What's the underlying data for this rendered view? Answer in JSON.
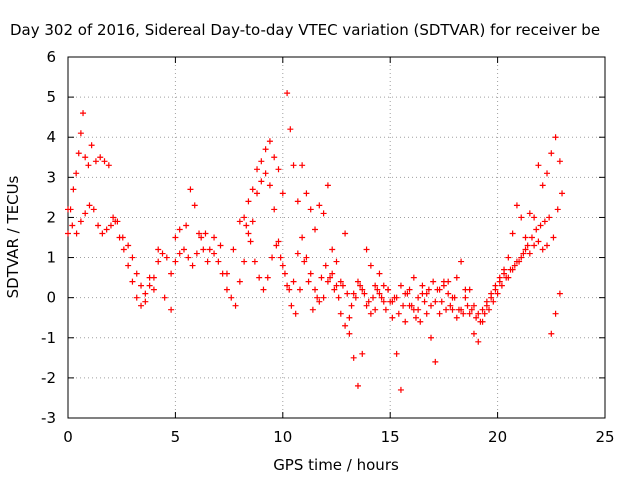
{
  "chart_data": {
    "type": "scatter",
    "title": "Day 302 of 2016, Sidereal Day-to-day VTEC variation (SDTVAR) for receiver be",
    "xlabel": "GPS time / hours",
    "ylabel": "SDTVAR / TECUs",
    "xlim": [
      0,
      25
    ],
    "ylim": [
      -3,
      6
    ],
    "xticks": [
      "0",
      "5",
      "10",
      "15",
      "20",
      "25"
    ],
    "yticks": [
      "-3",
      "-2",
      "-1",
      "0",
      "1",
      "2",
      "3",
      "4",
      "5",
      "6"
    ],
    "grid": true,
    "marker": "+",
    "series_color": "#ff0000",
    "series": [
      {
        "points": [
          [
            0.0,
            1.6
          ],
          [
            0.12,
            2.2
          ],
          [
            0.25,
            2.7
          ],
          [
            0.38,
            3.1
          ],
          [
            0.5,
            3.6
          ],
          [
            0.6,
            4.1
          ],
          [
            0.7,
            4.6
          ],
          [
            0.8,
            3.5
          ],
          [
            0.95,
            3.3
          ],
          [
            1.1,
            3.8
          ],
          [
            1.3,
            3.4
          ],
          [
            1.5,
            3.5
          ],
          [
            1.7,
            3.4
          ],
          [
            1.9,
            3.3
          ],
          [
            2.1,
            2.0
          ],
          [
            2.3,
            1.9
          ],
          [
            2.55,
            1.5
          ],
          [
            2.8,
            1.3
          ],
          [
            3.0,
            1.0
          ],
          [
            3.2,
            0.6
          ],
          [
            3.4,
            0.3
          ],
          [
            3.6,
            -0.1
          ],
          [
            3.8,
            0.5
          ],
          [
            4.0,
            0.2
          ],
          [
            4.2,
            1.2
          ],
          [
            4.5,
            0.0
          ],
          [
            4.8,
            -0.3
          ],
          [
            5.0,
            1.5
          ],
          [
            5.2,
            1.7
          ],
          [
            5.5,
            1.8
          ],
          [
            5.7,
            2.7
          ],
          [
            5.9,
            2.3
          ],
          [
            6.1,
            1.6
          ],
          [
            6.3,
            1.2
          ],
          [
            6.5,
            0.9
          ],
          [
            6.8,
            1.5
          ],
          [
            7.1,
            1.3
          ],
          [
            7.4,
            0.6
          ],
          [
            7.7,
            1.2
          ],
          [
            8.0,
            1.9
          ],
          [
            8.2,
            2.0
          ],
          [
            8.4,
            2.4
          ],
          [
            8.6,
            2.7
          ],
          [
            8.8,
            3.2
          ],
          [
            9.0,
            3.4
          ],
          [
            9.2,
            3.7
          ],
          [
            9.4,
            3.9
          ],
          [
            9.6,
            3.5
          ],
          [
            9.8,
            3.2
          ],
          [
            10.0,
            2.6
          ],
          [
            10.2,
            5.1
          ],
          [
            10.35,
            4.2
          ],
          [
            10.5,
            3.3
          ],
          [
            10.7,
            2.4
          ],
          [
            10.9,
            3.3
          ],
          [
            11.1,
            2.6
          ],
          [
            11.3,
            2.2
          ],
          [
            11.5,
            1.7
          ],
          [
            11.7,
            2.3
          ],
          [
            11.9,
            2.1
          ],
          [
            12.1,
            2.8
          ],
          [
            12.3,
            1.2
          ],
          [
            12.5,
            0.9
          ],
          [
            12.7,
            0.4
          ],
          [
            12.9,
            1.6
          ],
          [
            13.1,
            -0.9
          ],
          [
            13.3,
            -1.5
          ],
          [
            13.5,
            -2.2
          ],
          [
            13.7,
            -1.4
          ],
          [
            13.9,
            1.2
          ],
          [
            14.1,
            0.8
          ],
          [
            14.3,
            0.3
          ],
          [
            14.5,
            0.6
          ],
          [
            14.7,
            -0.1
          ],
          [
            14.9,
            0.2
          ],
          [
            15.1,
            -0.5
          ],
          [
            15.3,
            -1.4
          ],
          [
            15.5,
            -2.3
          ],
          [
            15.7,
            -0.6
          ],
          [
            15.9,
            0.2
          ],
          [
            16.1,
            0.5
          ],
          [
            16.3,
            -0.3
          ],
          [
            16.5,
            0.1
          ],
          [
            16.7,
            -0.4
          ],
          [
            16.9,
            -1.0
          ],
          [
            17.1,
            -1.6
          ],
          [
            17.3,
            -0.4
          ],
          [
            17.5,
            0.3
          ],
          [
            17.7,
            0.4
          ],
          [
            17.9,
            0.0
          ],
          [
            18.1,
            0.5
          ],
          [
            18.3,
            0.9
          ],
          [
            18.5,
            0.2
          ],
          [
            18.7,
            -0.4
          ],
          [
            18.9,
            -0.9
          ],
          [
            19.1,
            -1.1
          ],
          [
            19.3,
            -0.6
          ],
          [
            19.5,
            -0.2
          ],
          [
            19.7,
            0.0
          ],
          [
            19.9,
            0.2
          ],
          [
            20.1,
            0.4
          ],
          [
            20.3,
            0.6
          ],
          [
            20.5,
            1.0
          ],
          [
            20.7,
            1.6
          ],
          [
            20.9,
            2.3
          ],
          [
            21.1,
            2.0
          ],
          [
            21.3,
            1.5
          ],
          [
            21.5,
            2.1
          ],
          [
            21.7,
            2.0
          ],
          [
            21.9,
            3.3
          ],
          [
            22.1,
            2.8
          ],
          [
            22.3,
            3.1
          ],
          [
            22.5,
            3.6
          ],
          [
            22.7,
            4.0
          ],
          [
            22.9,
            3.4
          ]
        ]
      },
      {
        "points": [
          [
            0.0,
            2.2
          ],
          [
            0.2,
            1.8
          ],
          [
            0.4,
            1.6
          ],
          [
            0.6,
            1.9
          ],
          [
            0.8,
            2.1
          ],
          [
            1.0,
            2.3
          ],
          [
            1.2,
            2.2
          ],
          [
            1.4,
            1.8
          ],
          [
            1.6,
            1.6
          ],
          [
            1.8,
            1.7
          ],
          [
            2.0,
            1.8
          ],
          [
            2.2,
            1.9
          ],
          [
            2.4,
            1.5
          ],
          [
            2.6,
            1.2
          ],
          [
            2.8,
            0.8
          ],
          [
            3.0,
            0.4
          ],
          [
            3.2,
            0.0
          ],
          [
            3.4,
            -0.2
          ],
          [
            3.6,
            0.1
          ],
          [
            3.8,
            0.3
          ],
          [
            4.0,
            0.5
          ],
          [
            4.2,
            0.9
          ],
          [
            4.4,
            1.1
          ],
          [
            4.6,
            1.0
          ],
          [
            4.8,
            0.6
          ],
          [
            5.0,
            0.9
          ],
          [
            5.2,
            1.1
          ],
          [
            5.4,
            1.2
          ],
          [
            5.6,
            1.0
          ],
          [
            5.8,
            0.8
          ],
          [
            6.0,
            1.1
          ],
          [
            6.2,
            1.5
          ],
          [
            6.4,
            1.6
          ],
          [
            6.6,
            1.2
          ],
          [
            6.8,
            1.1
          ],
          [
            7.0,
            0.9
          ],
          [
            7.2,
            0.6
          ],
          [
            7.4,
            0.2
          ],
          [
            7.6,
            0.0
          ],
          [
            7.8,
            -0.2
          ],
          [
            8.0,
            0.4
          ],
          [
            8.2,
            0.9
          ],
          [
            8.4,
            1.6
          ],
          [
            8.6,
            1.9
          ],
          [
            8.8,
            2.6
          ],
          [
            9.0,
            2.9
          ],
          [
            9.2,
            3.1
          ],
          [
            9.4,
            2.8
          ],
          [
            9.6,
            2.2
          ],
          [
            9.8,
            1.4
          ],
          [
            10.0,
            0.8
          ],
          [
            10.2,
            0.3
          ],
          [
            10.4,
            -0.2
          ],
          [
            10.6,
            -0.4
          ],
          [
            10.8,
            0.2
          ],
          [
            11.0,
            0.9
          ],
          [
            11.2,
            0.4
          ],
          [
            11.4,
            -0.3
          ],
          [
            11.6,
            0.0
          ],
          [
            11.8,
            0.5
          ],
          [
            12.0,
            0.8
          ],
          [
            12.2,
            0.5
          ],
          [
            12.4,
            0.2
          ],
          [
            12.6,
            0.0
          ],
          [
            12.8,
            0.3
          ],
          [
            13.0,
            0.1
          ],
          [
            13.2,
            -0.2
          ],
          [
            13.4,
            0.0
          ],
          [
            13.6,
            0.3
          ],
          [
            13.8,
            0.1
          ],
          [
            14.0,
            -0.1
          ],
          [
            14.2,
            0.0
          ],
          [
            14.4,
            0.2
          ],
          [
            14.6,
            0.0
          ],
          [
            14.8,
            -0.3
          ],
          [
            15.0,
            -0.1
          ],
          [
            15.2,
            0.0
          ],
          [
            15.4,
            -0.4
          ],
          [
            15.6,
            -0.2
          ],
          [
            15.8,
            0.1
          ],
          [
            16.0,
            -0.2
          ],
          [
            16.2,
            -0.5
          ],
          [
            16.4,
            -0.6
          ],
          [
            16.6,
            -0.1
          ],
          [
            16.8,
            0.2
          ],
          [
            17.0,
            0.4
          ],
          [
            17.2,
            0.2
          ],
          [
            17.4,
            -0.1
          ],
          [
            17.6,
            -0.3
          ],
          [
            17.8,
            -0.2
          ],
          [
            18.0,
            0.0
          ],
          [
            18.2,
            -0.3
          ],
          [
            18.4,
            -0.4
          ],
          [
            18.6,
            -0.2
          ],
          [
            18.8,
            -0.3
          ],
          [
            19.0,
            -0.5
          ],
          [
            19.2,
            -0.6
          ],
          [
            19.4,
            -0.4
          ],
          [
            19.6,
            -0.3
          ],
          [
            19.8,
            -0.1
          ],
          [
            20.0,
            0.1
          ],
          [
            20.2,
            0.3
          ],
          [
            20.4,
            0.5
          ],
          [
            20.6,
            0.7
          ],
          [
            20.8,
            0.8
          ],
          [
            21.0,
            0.9
          ],
          [
            21.2,
            1.1
          ],
          [
            21.4,
            1.3
          ],
          [
            21.6,
            1.5
          ],
          [
            21.8,
            1.7
          ],
          [
            22.0,
            1.8
          ],
          [
            22.2,
            1.9
          ],
          [
            22.4,
            2.0
          ],
          [
            22.6,
            1.5
          ],
          [
            22.8,
            2.2
          ],
          [
            23.0,
            2.6
          ]
        ]
      },
      {
        "points": [
          [
            8.3,
            1.8
          ],
          [
            8.5,
            1.4
          ],
          [
            8.7,
            0.9
          ],
          [
            8.9,
            0.5
          ],
          [
            9.1,
            0.2
          ],
          [
            9.3,
            0.5
          ],
          [
            9.5,
            1.0
          ],
          [
            9.7,
            1.3
          ],
          [
            9.9,
            1.0
          ],
          [
            10.1,
            0.6
          ],
          [
            10.3,
            0.2
          ],
          [
            10.5,
            0.4
          ],
          [
            10.7,
            1.1
          ],
          [
            10.9,
            1.5
          ],
          [
            11.1,
            1.0
          ],
          [
            11.3,
            0.6
          ],
          [
            11.5,
            0.2
          ],
          [
            11.7,
            -0.1
          ],
          [
            11.9,
            0.0
          ],
          [
            12.1,
            0.4
          ],
          [
            12.3,
            0.6
          ],
          [
            12.5,
            0.3
          ],
          [
            12.7,
            -0.4
          ],
          [
            12.9,
            -0.7
          ],
          [
            13.1,
            -0.5
          ],
          [
            13.3,
            0.1
          ],
          [
            13.5,
            0.4
          ],
          [
            13.7,
            0.2
          ],
          [
            13.9,
            -0.2
          ],
          [
            14.1,
            -0.4
          ],
          [
            14.3,
            -0.3
          ],
          [
            14.5,
            0.1
          ],
          [
            14.7,
            0.3
          ],
          [
            14.9,
            0.2
          ],
          [
            15.1,
            -0.1
          ],
          [
            15.3,
            0.0
          ],
          [
            15.5,
            0.3
          ],
          [
            15.7,
            0.1
          ],
          [
            15.9,
            -0.2
          ],
          [
            16.1,
            -0.3
          ],
          [
            16.3,
            0.0
          ],
          [
            16.5,
            0.3
          ],
          [
            16.7,
            0.1
          ],
          [
            16.9,
            -0.2
          ],
          [
            17.1,
            -0.1
          ],
          [
            17.3,
            0.2
          ],
          [
            17.5,
            0.4
          ],
          [
            17.7,
            0.1
          ],
          [
            17.9,
            -0.3
          ],
          [
            18.1,
            -0.5
          ],
          [
            18.3,
            -0.3
          ],
          [
            18.5,
            0.0
          ],
          [
            18.7,
            0.2
          ],
          [
            18.9,
            -0.2
          ],
          [
            19.1,
            -0.4
          ],
          [
            19.3,
            -0.3
          ],
          [
            19.5,
            -0.1
          ],
          [
            19.7,
            0.1
          ],
          [
            19.9,
            0.3
          ],
          [
            20.1,
            0.5
          ],
          [
            20.3,
            0.7
          ],
          [
            20.5,
            0.5
          ],
          [
            20.7,
            0.7
          ],
          [
            20.9,
            0.9
          ],
          [
            21.1,
            1.0
          ],
          [
            21.3,
            1.2
          ],
          [
            21.5,
            1.1
          ],
          [
            21.7,
            1.3
          ],
          [
            21.9,
            1.4
          ],
          [
            22.1,
            1.2
          ],
          [
            22.3,
            1.3
          ],
          [
            22.5,
            -0.9
          ],
          [
            22.7,
            -0.4
          ],
          [
            22.9,
            0.1
          ]
        ]
      }
    ]
  }
}
